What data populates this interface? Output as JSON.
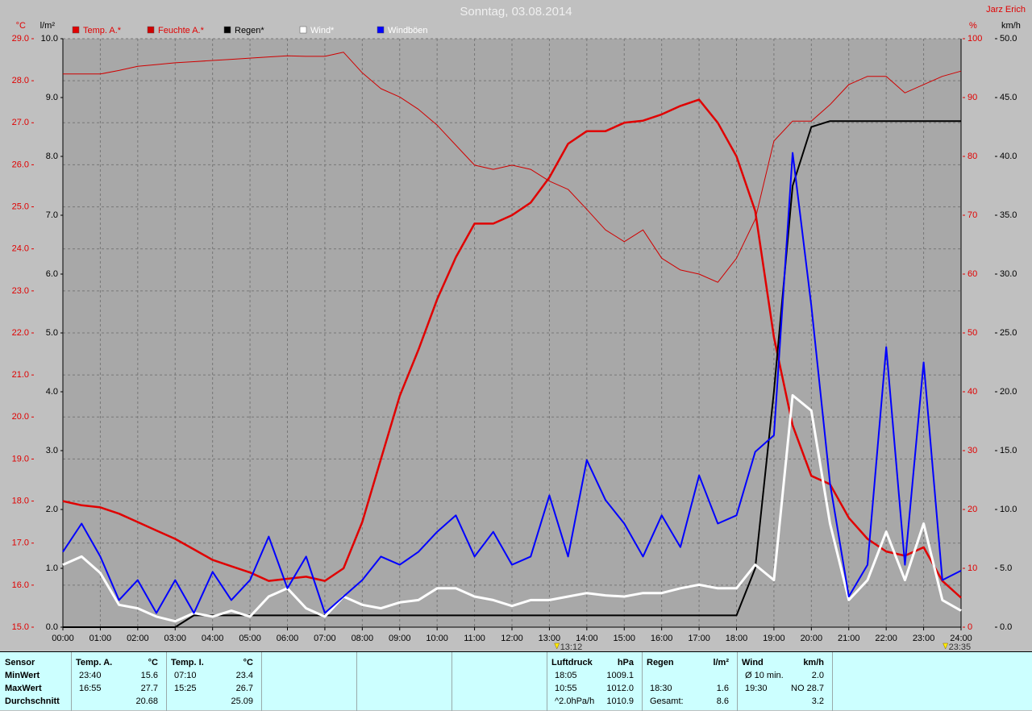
{
  "chart_data": {
    "type": "line",
    "title": "Sonntag, 03.08.2014",
    "subtitle": "Jarz Erich",
    "xlim": [
      0,
      24
    ],
    "xticks": [
      {
        "value": 0,
        "label": "00:00"
      },
      {
        "value": 1,
        "label": "01:00"
      },
      {
        "value": 2,
        "label": "02:00"
      },
      {
        "value": 3,
        "label": "03:00"
      },
      {
        "value": 4,
        "label": "04:00"
      },
      {
        "value": 5,
        "label": "05:00"
      },
      {
        "value": 6,
        "label": "06:00"
      },
      {
        "value": 7,
        "label": "07:00"
      },
      {
        "value": 8,
        "label": "08:00"
      },
      {
        "value": 9,
        "label": "09:00"
      },
      {
        "value": 10,
        "label": "10:00"
      },
      {
        "value": 11,
        "label": "11:00"
      },
      {
        "value": 12,
        "label": "12:00"
      },
      {
        "value": 13,
        "label": "13:00"
      },
      {
        "value": 14,
        "label": "14:00"
      },
      {
        "value": 15,
        "label": "15:00"
      },
      {
        "value": 16,
        "label": "16:00"
      },
      {
        "value": 17,
        "label": "17:00"
      },
      {
        "value": 18,
        "label": "18:00"
      },
      {
        "value": 19,
        "label": "19:00"
      },
      {
        "value": 20,
        "label": "20:00"
      },
      {
        "value": 21,
        "label": "21:00"
      },
      {
        "value": 22,
        "label": "22:00"
      },
      {
        "value": 23,
        "label": "23:00"
      },
      {
        "value": 24,
        "label": "24:00"
      }
    ],
    "grid": true,
    "axes": [
      {
        "id": "y",
        "label": "°C",
        "side": "left",
        "color": "#e00000",
        "lim": [
          15,
          29
        ],
        "ticks": [
          {
            "value": 15,
            "label": "15.0"
          },
          {
            "value": 16,
            "label": "16.0"
          },
          {
            "value": 17,
            "label": "17.0"
          },
          {
            "value": 18,
            "label": "18.0"
          },
          {
            "value": 19,
            "label": "19.0"
          },
          {
            "value": 20,
            "label": "20.0"
          },
          {
            "value": 21,
            "label": "21.0"
          },
          {
            "value": 22,
            "label": "22.0"
          },
          {
            "value": 23,
            "label": "23.0"
          },
          {
            "value": 24,
            "label": "24.0"
          },
          {
            "value": 25,
            "label": "25.0"
          },
          {
            "value": 26,
            "label": "26.0"
          },
          {
            "value": 27,
            "label": "27.0"
          },
          {
            "value": 28,
            "label": "28.0"
          },
          {
            "value": 29,
            "label": "29.0"
          }
        ]
      },
      {
        "id": "y2",
        "label": "l/m²",
        "side": "left",
        "color": "#000000",
        "lim": [
          0,
          10
        ],
        "ticks": [
          {
            "value": 0,
            "label": "0.0"
          },
          {
            "value": 1,
            "label": "1.0"
          },
          {
            "value": 2,
            "label": "2.0"
          },
          {
            "value": 3,
            "label": "3.0"
          },
          {
            "value": 4,
            "label": "4.0"
          },
          {
            "value": 5,
            "label": "5.0"
          },
          {
            "value": 6,
            "label": "6.0"
          },
          {
            "value": 7,
            "label": "7.0"
          },
          {
            "value": 8,
            "label": "8.0"
          },
          {
            "value": 9,
            "label": "9.0"
          },
          {
            "value": 10,
            "label": "10.0"
          }
        ]
      },
      {
        "id": "y3",
        "label": "%",
        "side": "right",
        "color": "#e00000",
        "lim": [
          0,
          100
        ],
        "ticks": [
          0,
          10,
          20,
          30,
          40,
          50,
          60,
          70,
          80,
          90,
          100
        ]
      },
      {
        "id": "y4",
        "label": "km/h",
        "side": "right",
        "color": "#000000",
        "lim": [
          0,
          50
        ],
        "ticks": [
          {
            "value": 0,
            "label": "0.0"
          },
          {
            "value": 5,
            "label": "5.0"
          },
          {
            "value": 10,
            "label": "10.0"
          },
          {
            "value": 15,
            "label": "15.0"
          },
          {
            "value": 20,
            "label": "20.0"
          },
          {
            "value": 25,
            "label": "25.0"
          },
          {
            "value": 30,
            "label": "30.0"
          },
          {
            "value": 35,
            "label": "35.0"
          },
          {
            "value": 40,
            "label": "40.0"
          },
          {
            "value": 45,
            "label": "45.0"
          },
          {
            "value": 50,
            "label": "50.0"
          }
        ]
      }
    ],
    "x": [
      0,
      0.5,
      1,
      1.5,
      2,
      2.5,
      3,
      3.5,
      4,
      4.5,
      5,
      5.5,
      6,
      6.5,
      7,
      7.5,
      8,
      8.5,
      9,
      9.5,
      10,
      10.5,
      11,
      11.5,
      12,
      12.5,
      13,
      13.5,
      14,
      14.5,
      15,
      15.5,
      16,
      16.5,
      17,
      17.5,
      18,
      18.5,
      19,
      19.5,
      20,
      20.5,
      21,
      21.5,
      22,
      22.5,
      23,
      23.5,
      24
    ],
    "series": [
      {
        "name": "Temp. A.*",
        "color": "#e00000",
        "axis": "y",
        "values": [
          18.0,
          17.9,
          17.85,
          17.7,
          17.5,
          17.3,
          17.1,
          16.85,
          16.6,
          16.45,
          16.3,
          16.1,
          16.15,
          16.2,
          16.1,
          16.4,
          17.5,
          19.0,
          20.5,
          21.6,
          22.8,
          23.8,
          24.6,
          24.6,
          24.8,
          25.1,
          25.7,
          26.5,
          26.8,
          26.8,
          27.0,
          27.05,
          27.2,
          27.4,
          27.55,
          27.0,
          26.2,
          24.9,
          21.9,
          19.8,
          18.6,
          18.4,
          17.6,
          17.1,
          16.8,
          16.7,
          16.9,
          16.1,
          15.7
        ]
      },
      {
        "name": "Feuchte A.*",
        "color": "#d00000",
        "axis": "y3",
        "values": [
          94.0,
          94.0,
          94.0,
          94.6,
          95.3,
          95.6,
          95.9,
          96.1,
          96.3,
          96.5,
          96.7,
          96.9,
          97.1,
          97.0,
          97.0,
          97.7,
          94.2,
          91.5,
          90.1,
          88.0,
          85.3,
          81.9,
          78.5,
          77.8,
          78.5,
          77.8,
          75.8,
          74.4,
          71.0,
          67.5,
          65.5,
          67.5,
          62.7,
          60.7,
          60.0,
          58.6,
          62.7,
          69.3,
          82.6,
          86.0,
          86.0,
          88.8,
          92.2,
          93.6,
          93.6,
          90.8,
          92.2,
          93.6,
          94.5
        ]
      },
      {
        "name": "Regen*",
        "color": "#000000",
        "axis": "y2",
        "values": [
          0,
          0,
          0,
          0,
          0,
          0,
          0,
          0.2,
          0.2,
          0.2,
          0.2,
          0.2,
          0.2,
          0.2,
          0.2,
          0.2,
          0.2,
          0.2,
          0.2,
          0.2,
          0.2,
          0.2,
          0.2,
          0.2,
          0.2,
          0.2,
          0.2,
          0.2,
          0.2,
          0.2,
          0.2,
          0.2,
          0.2,
          0.2,
          0.2,
          0.2,
          0.2,
          1.0,
          4.0,
          7.5,
          8.5,
          8.6,
          8.6,
          8.6,
          8.6,
          8.6,
          8.6,
          8.6,
          8.6
        ]
      },
      {
        "name": "Wind*",
        "color": "#ffffff",
        "axis": "y4",
        "values": [
          5.3,
          6.0,
          4.6,
          1.9,
          1.6,
          0.9,
          0.5,
          1.2,
          0.9,
          1.4,
          0.9,
          2.6,
          3.3,
          1.6,
          0.9,
          2.6,
          1.9,
          1.6,
          2.1,
          2.3,
          3.3,
          3.3,
          2.6,
          2.3,
          1.8,
          2.3,
          2.3,
          2.6,
          2.9,
          2.7,
          2.6,
          2.9,
          2.9,
          3.3,
          3.6,
          3.3,
          3.3,
          5.3,
          4.0,
          19.7,
          18.4,
          8.8,
          2.3,
          4.0,
          8.1,
          4.0,
          8.8,
          2.3,
          1.4
        ]
      },
      {
        "name": "Windböen",
        "color": "#0000ff",
        "axis": "y4",
        "values": [
          6.4,
          8.8,
          6.0,
          2.3,
          4.0,
          1.2,
          4.0,
          1.2,
          4.7,
          2.3,
          4.0,
          7.7,
          3.3,
          6.0,
          1.2,
          2.6,
          4.0,
          6.0,
          5.3,
          6.4,
          8.1,
          9.5,
          6.0,
          8.1,
          5.3,
          6.0,
          11.2,
          6.0,
          14.2,
          10.8,
          8.8,
          6.0,
          9.5,
          6.8,
          12.9,
          8.8,
          9.5,
          14.9,
          16.3,
          40.3,
          27.3,
          12.2,
          2.6,
          5.3,
          23.8,
          5.3,
          22.5,
          4.0,
          4.8
        ]
      }
    ],
    "annotations": [
      {
        "x": 13.2,
        "text": "13:12"
      },
      {
        "x": 23.583,
        "text": "23:35"
      }
    ]
  },
  "table": {
    "row_labels": [
      "Sensor",
      "MinWert",
      "MaxWert",
      "Durchschnitt"
    ],
    "groups": [
      {
        "name": "Temp. A.",
        "unit": "°C",
        "min": {
          "time": "23:40",
          "value": "15.6"
        },
        "max": {
          "time": "16:55",
          "value": "27.7"
        },
        "avg": {
          "value": "20.68"
        }
      },
      {
        "name": "Temp. I.",
        "unit": "°C",
        "min": {
          "time": "07:10",
          "value": "23.4"
        },
        "max": {
          "time": "15:25",
          "value": "26.7"
        },
        "avg": {
          "value": "25.09"
        }
      },
      {
        "name": "Luftdruck",
        "unit": "hPa",
        "min": {
          "time": "18:05",
          "value": "1009.1"
        },
        "max": {
          "time": "10:55",
          "value": "1012.0"
        },
        "avg": {
          "time": "^2.0hPa/h",
          "value": "1010.9"
        }
      },
      {
        "name": "Regen",
        "unit": "l/m²",
        "max": {
          "time": "18:30",
          "value": "1.6"
        },
        "avg": {
          "time": "Gesamt:",
          "value": "8.6"
        }
      },
      {
        "name": "Wind",
        "unit": "km/h",
        "min": {
          "time": "Ø 10 min.",
          "value": "2.0"
        },
        "max": {
          "time": "19:30",
          "value": "NO 28.7"
        },
        "avg": {
          "value": "3.2"
        }
      }
    ]
  }
}
